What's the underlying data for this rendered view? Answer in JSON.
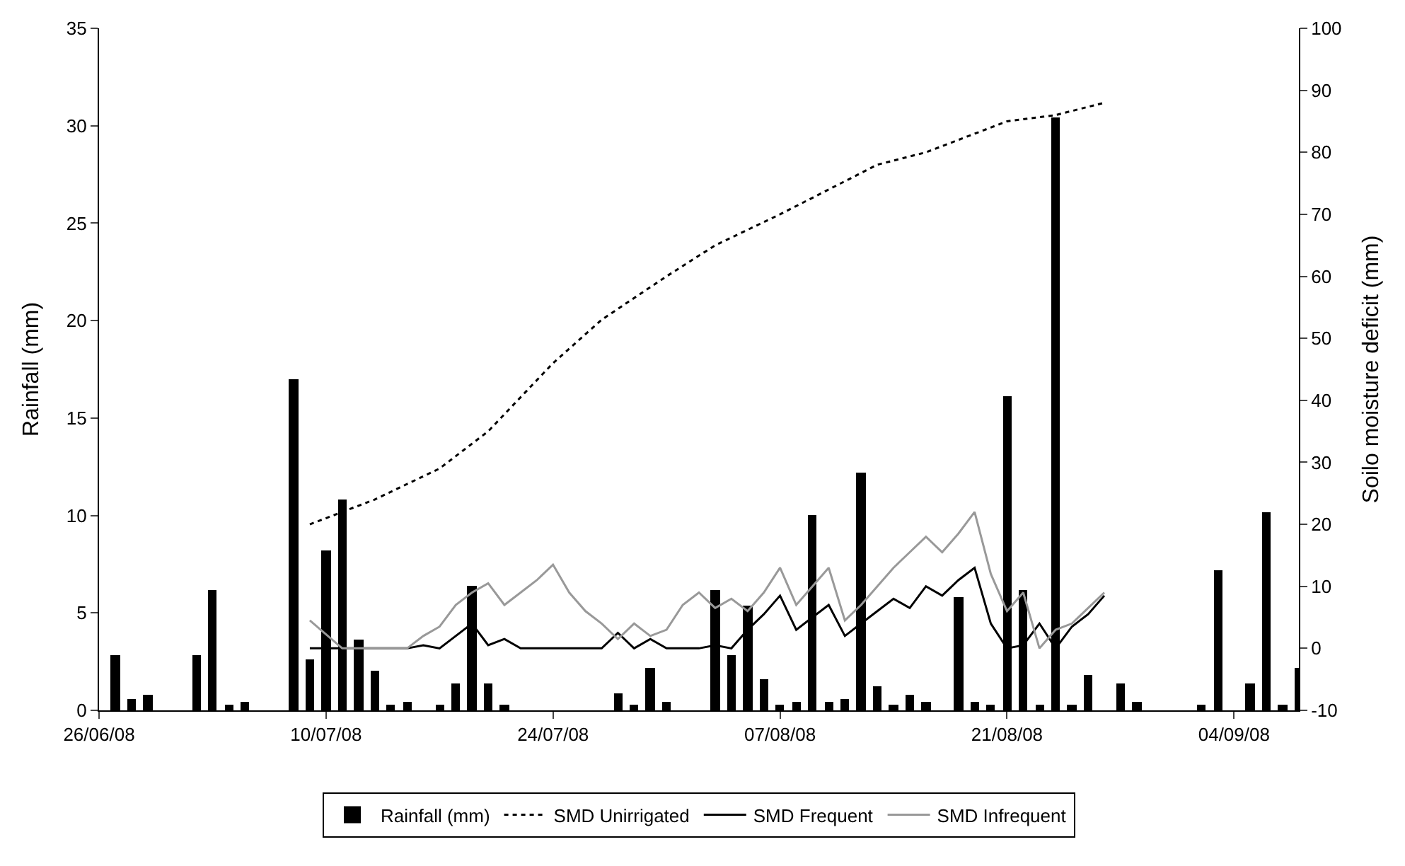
{
  "chart_data": {
    "type": "bar",
    "ylabel": "Rainfall (mm)",
    "y2label": "Soilo moisture deficit (mm)",
    "xlim": [
      "2008-06-26",
      "2008-09-08"
    ],
    "xticks": [
      {
        "value": "2008-06-26",
        "label": "26/06/08"
      },
      {
        "value": "2008-07-10",
        "label": "10/07/08"
      },
      {
        "value": "2008-07-24",
        "label": "24/07/08"
      },
      {
        "value": "2008-08-07",
        "label": "07/08/08"
      },
      {
        "value": "2008-08-21",
        "label": "21/08/08"
      },
      {
        "value": "2008-09-04",
        "label": "04/09/08"
      }
    ],
    "ylim": [
      0,
      35
    ],
    "yticks": [
      0,
      5,
      10,
      15,
      20,
      25,
      30,
      35
    ],
    "y2lim": [
      -10,
      100
    ],
    "y2ticks": [
      -10,
      0,
      10,
      20,
      30,
      40,
      50,
      60,
      70,
      80,
      90,
      100
    ],
    "legend": "bottom",
    "series": [
      {
        "name": "Rainfall (mm)",
        "color": "#000000",
        "x": [
          "2008-06-27",
          "2008-06-28",
          "2008-06-29",
          "2008-07-02",
          "2008-07-03",
          "2008-07-04",
          "2008-07-05",
          "2008-07-08",
          "2008-07-09",
          "2008-07-10",
          "2008-07-11",
          "2008-07-12",
          "2008-07-13",
          "2008-07-14",
          "2008-07-15",
          "2008-07-17",
          "2008-07-18",
          "2008-07-19",
          "2008-07-20",
          "2008-07-21",
          "2008-07-28",
          "2008-07-29",
          "2008-07-30",
          "2008-07-31",
          "2008-08-03",
          "2008-08-04",
          "2008-08-05",
          "2008-08-06",
          "2008-08-07",
          "2008-08-08",
          "2008-08-09",
          "2008-08-10",
          "2008-08-11",
          "2008-08-12",
          "2008-08-13",
          "2008-08-14",
          "2008-08-15",
          "2008-08-16",
          "2008-08-18",
          "2008-08-19",
          "2008-08-20",
          "2008-08-21",
          "2008-08-22",
          "2008-08-23",
          "2008-08-24",
          "2008-08-25",
          "2008-08-26",
          "2008-08-28",
          "2008-08-29",
          "2008-09-02",
          "2008-09-03",
          "2008-09-05",
          "2008-09-06",
          "2008-09-07",
          "2008-09-08"
        ],
        "values": [
          2.8,
          0.6,
          0.8,
          2.8,
          6.2,
          0.3,
          0.4,
          17.0,
          2.6,
          8.2,
          10.8,
          3.6,
          2.0,
          0.3,
          0.4,
          0.3,
          1.4,
          6.4,
          1.4,
          0.3,
          0.9,
          0.3,
          2.2,
          0.4,
          6.2,
          2.8,
          5.4,
          1.6,
          0.3,
          0.4,
          10.0,
          0.4,
          0.6,
          12.2,
          1.2,
          0.3,
          0.8,
          0.4,
          5.8,
          0.4,
          0.3,
          16.1,
          6.2,
          0.3,
          30.4,
          0.3,
          1.8,
          1.4,
          0.4,
          0.3,
          7.2,
          1.4,
          10.2,
          0.3,
          2.2
        ]
      },
      {
        "name": "SMD Unirrigated",
        "type": "line",
        "axis": "y2",
        "color": "#000000",
        "line_style": "dotted",
        "x": [
          "2008-07-09",
          "2008-07-13",
          "2008-07-17",
          "2008-07-20",
          "2008-07-24",
          "2008-07-27",
          "2008-07-31",
          "2008-08-03",
          "2008-08-07",
          "2008-08-10",
          "2008-08-13",
          "2008-08-16",
          "2008-08-19",
          "2008-08-21",
          "2008-08-24",
          "2008-08-27"
        ],
        "values": [
          20,
          24,
          29,
          35,
          46,
          53,
          60,
          65,
          70,
          74,
          78,
          80,
          83,
          85,
          86,
          88
        ]
      },
      {
        "name": "SMD Frequent",
        "type": "line",
        "axis": "y2",
        "color": "#000000",
        "line_style": "solid",
        "x": [
          "2008-07-09",
          "2008-07-11",
          "2008-07-12",
          "2008-07-13",
          "2008-07-14",
          "2008-07-15",
          "2008-07-16",
          "2008-07-17",
          "2008-07-18",
          "2008-07-19",
          "2008-07-20",
          "2008-07-21",
          "2008-07-22",
          "2008-07-23",
          "2008-07-24",
          "2008-07-25",
          "2008-07-26",
          "2008-07-27",
          "2008-07-28",
          "2008-07-29",
          "2008-07-30",
          "2008-07-31",
          "2008-08-01",
          "2008-08-02",
          "2008-08-03",
          "2008-08-04",
          "2008-08-05",
          "2008-08-06",
          "2008-08-07",
          "2008-08-08",
          "2008-08-09",
          "2008-08-10",
          "2008-08-11",
          "2008-08-12",
          "2008-08-13",
          "2008-08-14",
          "2008-08-15",
          "2008-08-16",
          "2008-08-17",
          "2008-08-18",
          "2008-08-19",
          "2008-08-20",
          "2008-08-21",
          "2008-08-22",
          "2008-08-23",
          "2008-08-24",
          "2008-08-25",
          "2008-08-26",
          "2008-08-27"
        ],
        "values": [
          0,
          0,
          0,
          0,
          0,
          0,
          0.5,
          0,
          2,
          4,
          0.5,
          1.5,
          0,
          0,
          0,
          0,
          0,
          0,
          2.5,
          0,
          1.5,
          0,
          0,
          0,
          0.5,
          0,
          3,
          5.5,
          8.5,
          3,
          5,
          7,
          2,
          4,
          6,
          8,
          6.5,
          10,
          8.5,
          11,
          13,
          4,
          0,
          0.5,
          4,
          0,
          3.5,
          5.5,
          8.5
        ]
      },
      {
        "name": "SMD Infrequent",
        "type": "line",
        "axis": "y2",
        "color": "#999999",
        "line_style": "solid",
        "x": [
          "2008-07-09",
          "2008-07-11",
          "2008-07-12",
          "2008-07-13",
          "2008-07-14",
          "2008-07-15",
          "2008-07-16",
          "2008-07-17",
          "2008-07-18",
          "2008-07-19",
          "2008-07-20",
          "2008-07-21",
          "2008-07-22",
          "2008-07-23",
          "2008-07-24",
          "2008-07-25",
          "2008-07-26",
          "2008-07-27",
          "2008-07-28",
          "2008-07-29",
          "2008-07-30",
          "2008-07-31",
          "2008-08-01",
          "2008-08-02",
          "2008-08-03",
          "2008-08-04",
          "2008-08-05",
          "2008-08-06",
          "2008-08-07",
          "2008-08-08",
          "2008-08-09",
          "2008-08-10",
          "2008-08-11",
          "2008-08-12",
          "2008-08-13",
          "2008-08-14",
          "2008-08-15",
          "2008-08-16",
          "2008-08-17",
          "2008-08-18",
          "2008-08-19",
          "2008-08-20",
          "2008-08-21",
          "2008-08-22",
          "2008-08-23",
          "2008-08-24",
          "2008-08-25",
          "2008-08-26",
          "2008-08-27"
        ],
        "values": [
          4.5,
          0,
          0,
          0,
          0,
          0,
          2,
          3.5,
          7,
          9,
          10.5,
          7,
          9,
          11,
          13.5,
          9,
          6,
          4,
          1.5,
          4,
          2,
          3,
          7,
          9,
          6.5,
          8,
          6,
          9,
          13,
          7,
          10,
          13,
          4.5,
          7,
          10,
          13,
          15.5,
          18,
          15.5,
          18.5,
          22,
          12,
          6,
          9,
          0,
          3,
          4,
          6.5,
          9
        ]
      }
    ]
  }
}
